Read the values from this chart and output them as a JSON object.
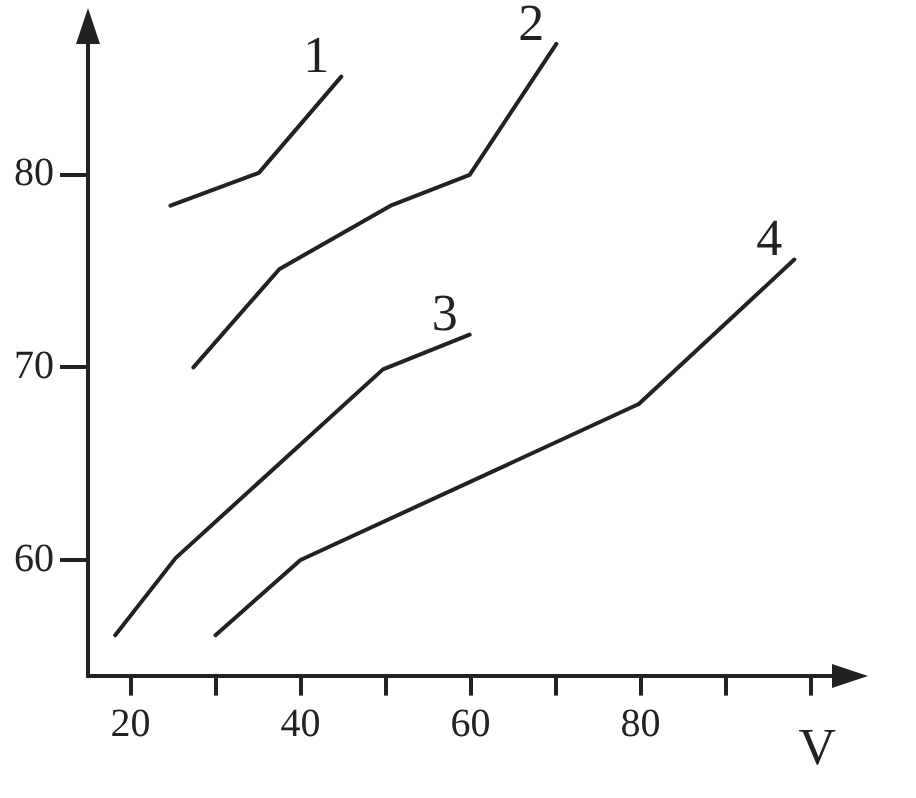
{
  "chart_data": {
    "type": "line",
    "xlabel": "V",
    "xlim": [
      15,
      103
    ],
    "ylim": [
      54,
      87
    ],
    "xticks": [
      20,
      {
        "value": 30,
        "label": null
      },
      40,
      {
        "value": 50,
        "label": null
      },
      60,
      {
        "value": 70,
        "label": null
      },
      80,
      {
        "value": 90,
        "label": null
      },
      {
        "value": 100,
        "label": null
      }
    ],
    "yticks": [
      60,
      70,
      80
    ],
    "grid": false,
    "legend": false,
    "marker": "none",
    "line_style": "solid",
    "series": [
      {
        "name": "1",
        "color": "#222222",
        "x": [
          24.7,
          35.1,
          44.8
        ],
        "values": [
          78.4,
          80.1,
          85.1
        ]
      },
      {
        "name": "2",
        "color": "#222222",
        "x": [
          27.4,
          37.5,
          50.6,
          59.9,
          70.1
        ],
        "values": [
          70.0,
          75.1,
          78.4,
          80.0,
          86.8
        ]
      },
      {
        "name": "3",
        "color": "#222222",
        "x": [
          18.2,
          25.3,
          49.7,
          59.9
        ],
        "values": [
          56.1,
          60.1,
          69.9,
          71.7
        ]
      },
      {
        "name": "4",
        "color": "#222222",
        "x": [
          30,
          40,
          79.8,
          98.1
        ],
        "values": [
          56.1,
          60,
          68.1,
          75.6
        ]
      }
    ]
  }
}
